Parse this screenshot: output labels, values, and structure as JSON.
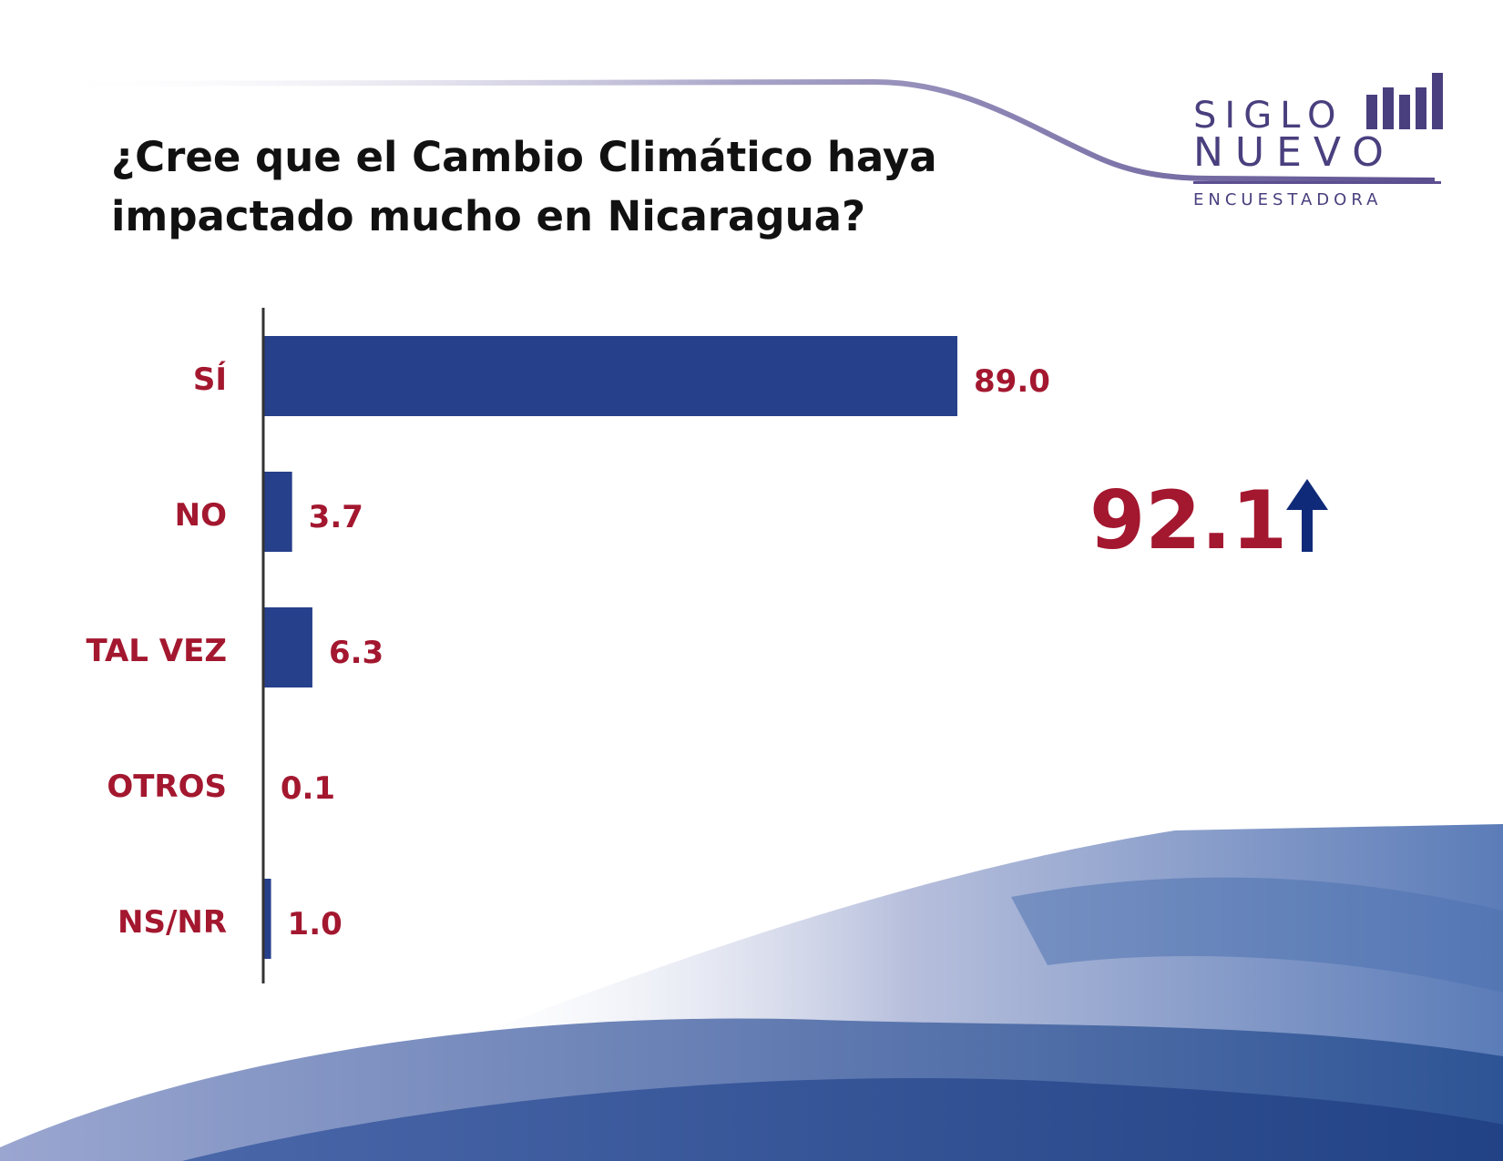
{
  "question": {
    "line1": "¿Cree que el Cambio Climático haya",
    "line2": "impactado mucho en Nicaragua?"
  },
  "logo": {
    "line1": "SIGLO",
    "line2": "NUEVO",
    "line3": "ENCUESTADORA",
    "color": "#4a3f7e"
  },
  "highlight": {
    "value": "92.1",
    "icon": "up-arrow-icon",
    "color": "#a3172f",
    "arrow_color": "#0f2a78"
  },
  "colors": {
    "bar": "#27408b",
    "label": "#a3172f",
    "axis": "#333333"
  },
  "chart_data": {
    "type": "bar",
    "orientation": "horizontal",
    "categories": [
      "SÍ",
      "NO",
      "TAL VEZ",
      "OTROS",
      "NS/NR"
    ],
    "values": [
      89.0,
      3.7,
      6.3,
      0.1,
      1.0
    ],
    "value_labels": [
      "89.0",
      "3.7",
      "6.3",
      "0.1",
      "1.0"
    ],
    "xlim": [
      0,
      100
    ],
    "grid": false,
    "legend": "none"
  }
}
